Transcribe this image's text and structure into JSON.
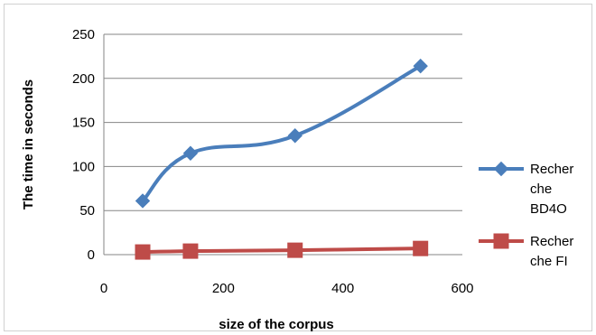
{
  "chart_data": {
    "type": "line",
    "title": "",
    "xlabel": "size of the corpus",
    "ylabel": "The time in seconds",
    "xlim": [
      0,
      600
    ],
    "ylim": [
      0,
      250
    ],
    "x_ticks": [
      "0",
      "200",
      "400",
      "600"
    ],
    "y_ticks": [
      "0",
      "50",
      "100",
      "150",
      "200",
      "250"
    ],
    "grid": "horizontal",
    "legend_position": "right",
    "series": [
      {
        "name_lines": [
          "Recher",
          "che",
          "BD4O"
        ],
        "color": "#4a7ebb",
        "marker": "diamond",
        "x": [
          65,
          145,
          320,
          530
        ],
        "y": [
          61,
          115,
          135,
          214
        ]
      },
      {
        "name_lines": [
          "Recher",
          "che FI"
        ],
        "color": "#be4b48",
        "marker": "square",
        "x": [
          65,
          145,
          320,
          530
        ],
        "y": [
          3,
          4,
          5,
          7
        ]
      }
    ]
  }
}
